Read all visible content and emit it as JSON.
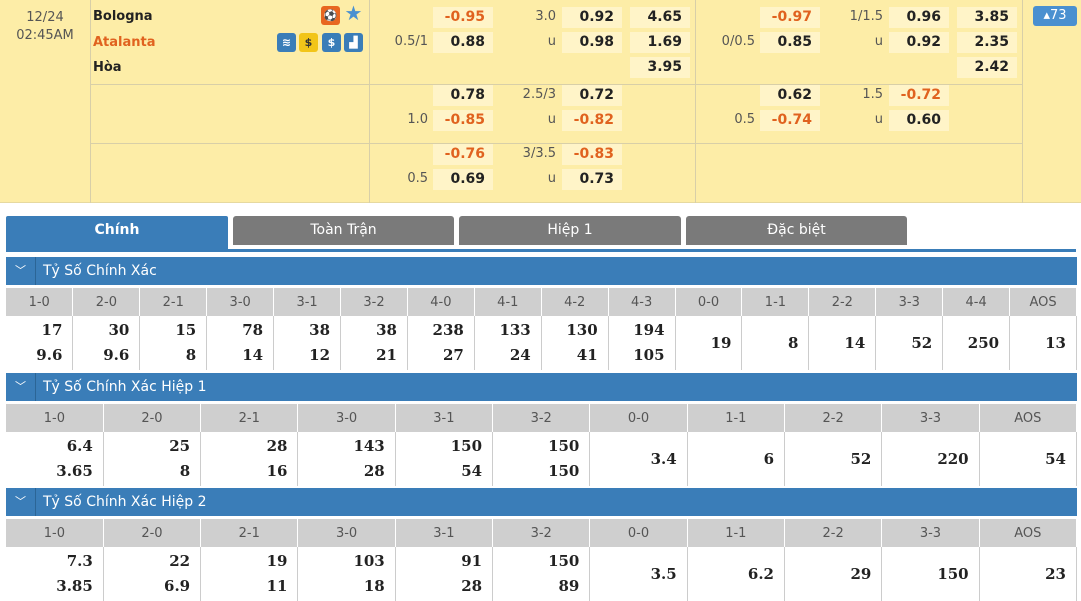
{
  "match": {
    "date": "12/24",
    "time": "02:45AM",
    "home": "Bologna",
    "away": "Atalanta",
    "draw": "Hòa",
    "more_count": "73"
  },
  "colors": {
    "negative": "#e0621f",
    "accent": "#3a7db8",
    "tab_inactive": "#7a7a7a",
    "row_bg": "#fdeda7"
  },
  "icons": [
    "live-tracker-icon",
    "favorite-star-icon",
    "stats-icon",
    "coin-icon",
    "dollar-icon",
    "chart-icon"
  ],
  "odds": [
    {
      "full": {
        "hdp": "0.5/1",
        "h1": "-0.95",
        "h2": "0.88",
        "ou": "3.0",
        "ou_u": "u",
        "o1": "0.92",
        "o2": "0.98",
        "x1": "4.65",
        "x2": "1.69",
        "x3": "3.95"
      },
      "half": {
        "hdp": "0/0.5",
        "h1": "-0.97",
        "h2": "0.85",
        "ou": "1/1.5",
        "ou_u": "u",
        "o1": "0.96",
        "o2": "0.92",
        "x1": "3.85",
        "x2": "2.35",
        "x3": "2.42"
      }
    },
    {
      "full": {
        "hdp": "1.0",
        "h1": "0.78",
        "h2": "-0.85",
        "ou": "2.5/3",
        "ou_u": "u",
        "o1": "0.72",
        "o2": "-0.82"
      },
      "half": {
        "hdp": "0.5",
        "h1": "0.62",
        "h2": "-0.74",
        "ou": "1.5",
        "ou_u": "u",
        "o1": "-0.72",
        "o2": "0.60"
      }
    },
    {
      "full": {
        "hdp": "0.5",
        "h1": "-0.76",
        "h2": "0.69",
        "ou": "3/3.5",
        "ou_u": "u",
        "o1": "-0.83",
        "o2": "0.73"
      }
    }
  ],
  "tabs": [
    "Chính",
    "Toàn Trận",
    "Hiệp 1",
    "Đặc biệt"
  ],
  "sections": [
    {
      "title": "Tỷ Số Chính Xác",
      "cols": [
        "1-0",
        "2-0",
        "2-1",
        "3-0",
        "3-1",
        "3-2",
        "4-0",
        "4-1",
        "4-2",
        "4-3",
        "0-0",
        "1-1",
        "2-2",
        "3-3",
        "4-4",
        "AOS"
      ],
      "values": [
        [
          "17",
          "9.6"
        ],
        [
          "30",
          "9.6"
        ],
        [
          "15",
          "8"
        ],
        [
          "78",
          "14"
        ],
        [
          "38",
          "12"
        ],
        [
          "38",
          "21"
        ],
        [
          "238",
          "27"
        ],
        [
          "133",
          "24"
        ],
        [
          "130",
          "41"
        ],
        [
          "194",
          "105"
        ],
        [
          "19"
        ],
        [
          "8"
        ],
        [
          "14"
        ],
        [
          "52"
        ],
        [
          "250"
        ],
        [
          "13"
        ]
      ]
    },
    {
      "title": "Tỷ Số Chính Xác Hiệp 1",
      "cols": [
        "1-0",
        "2-0",
        "2-1",
        "3-0",
        "3-1",
        "3-2",
        "0-0",
        "1-1",
        "2-2",
        "3-3",
        "AOS"
      ],
      "values": [
        [
          "6.4",
          "3.65"
        ],
        [
          "25",
          "8"
        ],
        [
          "28",
          "16"
        ],
        [
          "143",
          "28"
        ],
        [
          "150",
          "54"
        ],
        [
          "150",
          "150"
        ],
        [
          "3.4"
        ],
        [
          "6"
        ],
        [
          "52"
        ],
        [
          "220"
        ],
        [
          "54"
        ]
      ]
    },
    {
      "title": "Tỷ Số Chính Xác Hiệp 2",
      "cols": [
        "1-0",
        "2-0",
        "2-1",
        "3-0",
        "3-1",
        "3-2",
        "0-0",
        "1-1",
        "2-2",
        "3-3",
        "AOS"
      ],
      "values": [
        [
          "7.3",
          "3.85"
        ],
        [
          "22",
          "6.9"
        ],
        [
          "19",
          "11"
        ],
        [
          "103",
          "18"
        ],
        [
          "91",
          "28"
        ],
        [
          "150",
          "89"
        ],
        [
          "3.5"
        ],
        [
          "6.2"
        ],
        [
          "29"
        ],
        [
          "150"
        ],
        [
          "23"
        ]
      ]
    }
  ]
}
